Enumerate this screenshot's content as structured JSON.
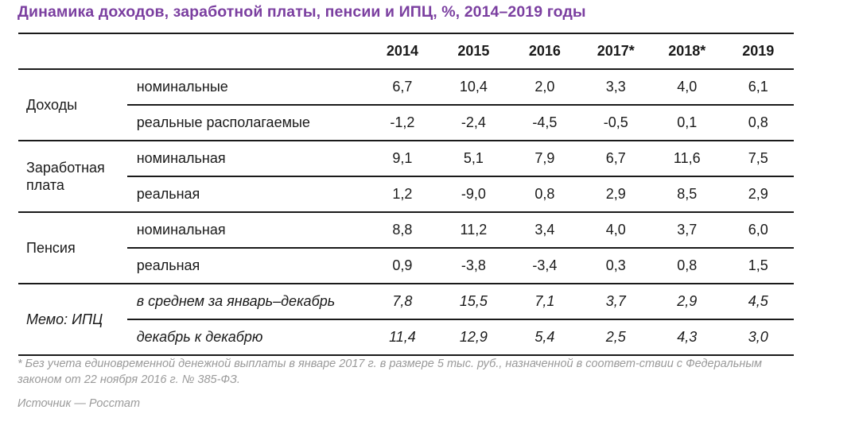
{
  "title": "Динамика доходов, заработной платы, пенсии и ИПЦ, %, 2014–2019 годы",
  "years": [
    "2014",
    "2015",
    "2016",
    "2017*",
    "2018*",
    "2019"
  ],
  "groups": [
    {
      "label": "Доходы",
      "rows": [
        {
          "label": "номинальные",
          "values": [
            "6,7",
            "10,4",
            "2,0",
            "3,3",
            "4,0",
            "6,1"
          ]
        },
        {
          "label": "реальные располагаемые",
          "values": [
            "-1,2",
            "-2,4",
            "-4,5",
            "-0,5",
            "0,1",
            "0,8"
          ]
        }
      ]
    },
    {
      "label": "Заработная плата",
      "rows": [
        {
          "label": "номинальная",
          "values": [
            "9,1",
            "5,1",
            "7,9",
            "6,7",
            "11,6",
            "7,5"
          ]
        },
        {
          "label": "реальная",
          "values": [
            "1,2",
            "-9,0",
            "0,8",
            "2,9",
            "8,5",
            "2,9"
          ]
        }
      ]
    },
    {
      "label": "Пенсия",
      "rows": [
        {
          "label": "номинальная",
          "values": [
            "8,8",
            "11,2",
            "3,4",
            "4,0",
            "3,7",
            "6,0"
          ]
        },
        {
          "label": "реальная",
          "values": [
            "0,9",
            "-3,8",
            "-3,4",
            "0,3",
            "0,8",
            "1,5"
          ]
        }
      ]
    },
    {
      "label": "Мемо: ИПЦ",
      "rows": [
        {
          "label": "в среднем за январь–декабрь",
          "values": [
            "7,8",
            "15,5",
            "7,1",
            "3,7",
            "2,9",
            "4,5"
          ]
        },
        {
          "label": "декабрь к декабрю",
          "values": [
            "11,4",
            "12,9",
            "5,4",
            "2,5",
            "4,3",
            "3,0"
          ]
        }
      ]
    }
  ],
  "footnote": "* Без учета единовременной денежной выплаты в январе 2017 г. в размере 5 тыс. руб., назначенной в соответ-ствии с Федеральным законом от 22 ноября 2016 г. № 385-ФЗ.",
  "source": "Источник — Росстат",
  "colors": {
    "title": "#7b3fa0",
    "text": "#1a1a1a",
    "note": "#9a9a9a"
  }
}
